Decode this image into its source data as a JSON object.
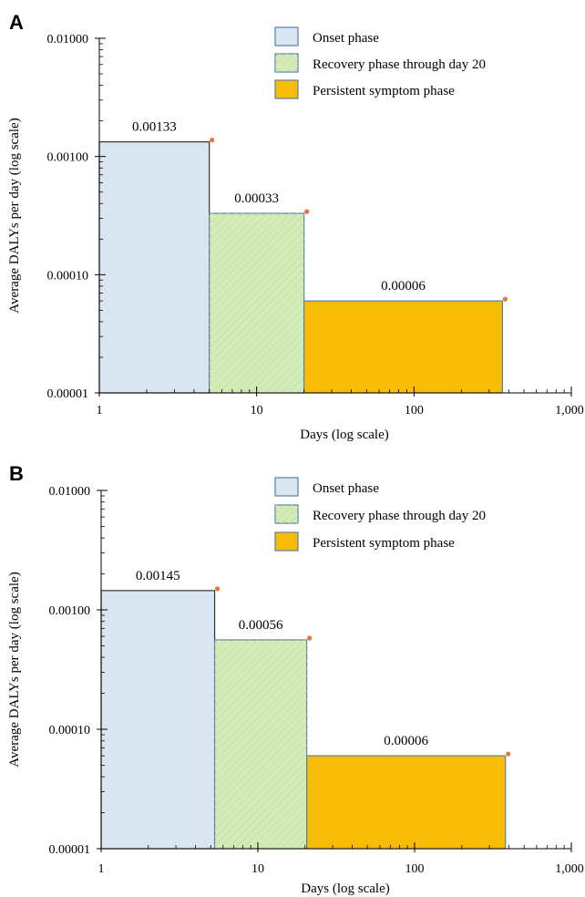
{
  "chart_data": [
    {
      "panel": "A",
      "type": "bar",
      "xlabel": "Days (log scale)",
      "ylabel": "Average DALYs per day (log scale)",
      "x_scale": "log",
      "y_scale": "log",
      "xlim": [
        1,
        1000
      ],
      "ylim": [
        1e-05,
        0.01
      ],
      "x_ticks": [
        1,
        10,
        100,
        1000
      ],
      "x_tick_labels": [
        "1",
        "10",
        "100",
        "1,000"
      ],
      "y_ticks": [
        1e-05,
        0.0001,
        0.001,
        0.01
      ],
      "y_tick_labels": [
        "0.00001",
        "0.00010",
        "0.00100",
        "0.01000"
      ],
      "legend_position": "top-right",
      "series": [
        {
          "name": "Onset phase",
          "x_start": 1,
          "x_end": 5,
          "value": 0.00133,
          "label": "0.00133",
          "color": "#d9e5f0"
        },
        {
          "name": "Recovery phase through day 20",
          "x_start": 5,
          "x_end": 20,
          "value": 0.00033,
          "label": "0.00033",
          "color": "#d3ebb8"
        },
        {
          "name": "Persistent symptom phase",
          "x_start": 20,
          "x_end": 365,
          "value": 6e-05,
          "label": "0.00006",
          "color": "#f9bc06"
        }
      ]
    },
    {
      "panel": "B",
      "type": "bar",
      "xlabel": "Days (log scale)",
      "ylabel": "Average DALYs per day (log scale)",
      "x_scale": "log",
      "y_scale": "log",
      "xlim": [
        1,
        1000
      ],
      "ylim": [
        1e-05,
        0.01
      ],
      "x_ticks": [
        1,
        10,
        100,
        1000
      ],
      "x_tick_labels": [
        "1",
        "10",
        "100",
        "1,000"
      ],
      "y_ticks": [
        1e-05,
        0.0001,
        0.001,
        0.01
      ],
      "y_tick_labels": [
        "0.00001",
        "0.00010",
        "0.00100",
        "0.01000"
      ],
      "legend_position": "top-right",
      "series": [
        {
          "name": "Onset phase",
          "x_start": 1,
          "x_end": 5.3,
          "value": 0.00145,
          "label": "0.00145",
          "color": "#d9e5f0"
        },
        {
          "name": "Recovery phase through day 20",
          "x_start": 5.3,
          "x_end": 20.5,
          "value": 0.00056,
          "label": "0.00056",
          "color": "#d3ebb8"
        },
        {
          "name": "Persistent symptom phase",
          "x_start": 20.5,
          "x_end": 380,
          "value": 6e-05,
          "label": "0.00006",
          "color": "#f9bc06"
        }
      ]
    }
  ],
  "colors": {
    "bar_border": "#5b7fa8",
    "onset_border": "#333333",
    "marker": "#e8743b",
    "axis": "#000000"
  }
}
